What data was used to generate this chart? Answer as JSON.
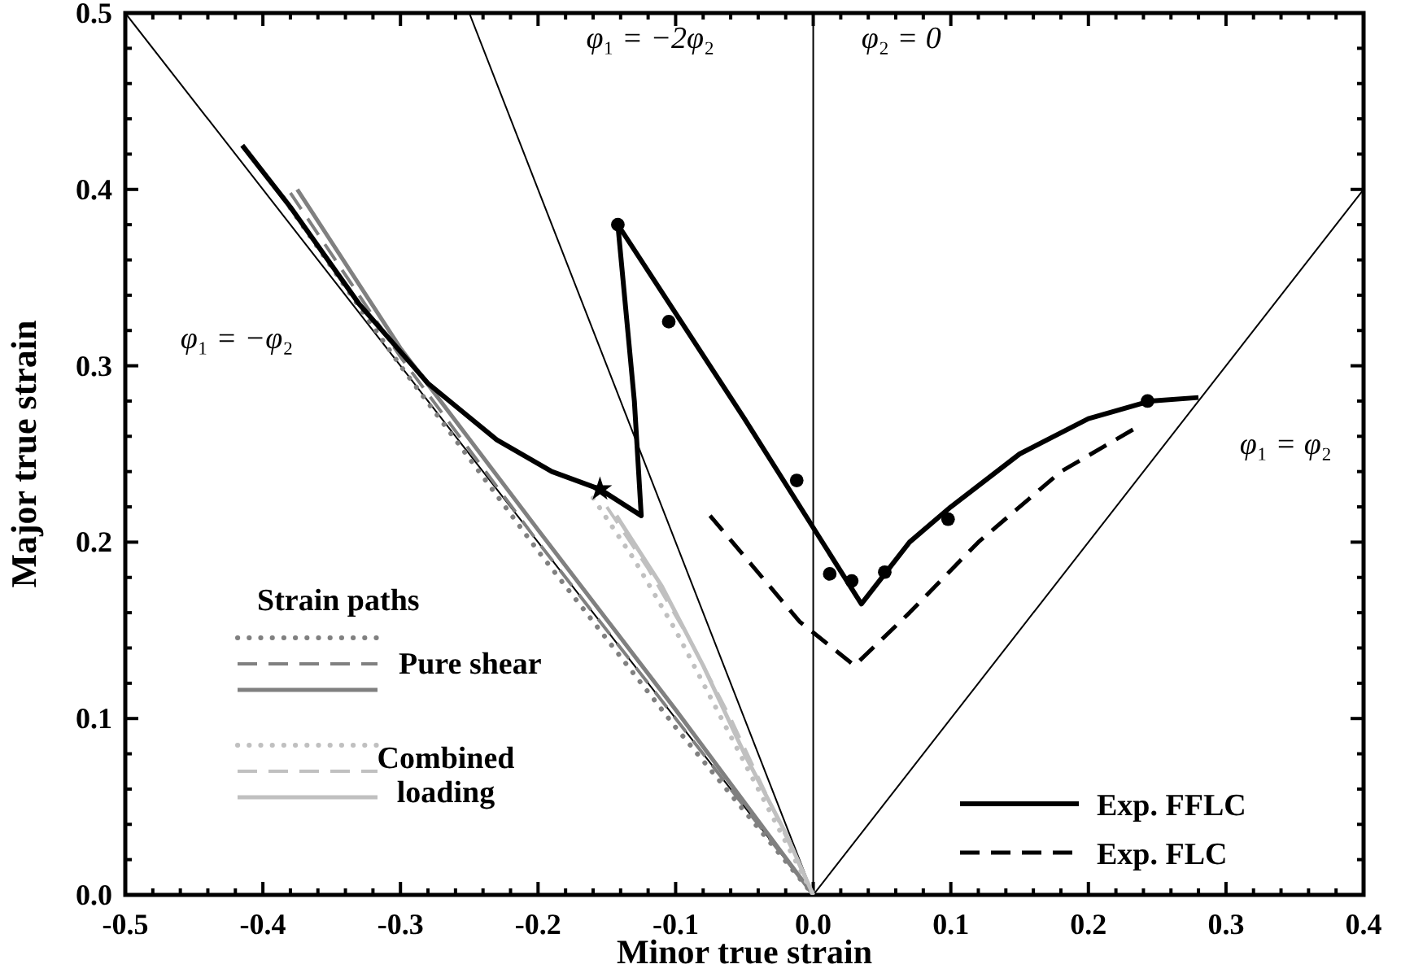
{
  "chart_data": {
    "type": "line",
    "xlabel": "Minor true strain",
    "ylabel": "Major true strain",
    "legend_title": "Strain paths",
    "legend": "bottom",
    "grid": false,
    "xlim": [
      -0.5,
      0.4
    ],
    "ylim": [
      0,
      0.5
    ],
    "xticks": [
      {
        "value": -0.5,
        "label": "-0.5"
      },
      {
        "value": -0.48,
        "label": null
      },
      {
        "value": -0.46,
        "label": null
      },
      {
        "value": -0.44,
        "label": null
      },
      {
        "value": -0.42,
        "label": null
      },
      {
        "value": -0.4,
        "label": "-0.4"
      },
      {
        "value": -0.38,
        "label": null
      },
      {
        "value": -0.36,
        "label": null
      },
      {
        "value": -0.34,
        "label": null
      },
      {
        "value": -0.32,
        "label": null
      },
      {
        "value": -0.3,
        "label": "-0.3"
      },
      {
        "value": -0.28,
        "label": null
      },
      {
        "value": -0.26,
        "label": null
      },
      {
        "value": -0.24,
        "label": null
      },
      {
        "value": -0.22,
        "label": null
      },
      {
        "value": -0.2,
        "label": "-0.2"
      },
      {
        "value": -0.18,
        "label": null
      },
      {
        "value": -0.16,
        "label": null
      },
      {
        "value": -0.14,
        "label": null
      },
      {
        "value": -0.12,
        "label": null
      },
      {
        "value": -0.1,
        "label": "-0.1"
      },
      {
        "value": -0.08,
        "label": null
      },
      {
        "value": -0.06,
        "label": null
      },
      {
        "value": -0.04,
        "label": null
      },
      {
        "value": -0.02,
        "label": null
      },
      {
        "value": 0,
        "label": "0.0"
      },
      {
        "value": 0.02,
        "label": null
      },
      {
        "value": 0.04,
        "label": null
      },
      {
        "value": 0.06,
        "label": null
      },
      {
        "value": 0.08,
        "label": null
      },
      {
        "value": 0.1,
        "label": "0.1"
      },
      {
        "value": 0.12,
        "label": null
      },
      {
        "value": 0.14,
        "label": null
      },
      {
        "value": 0.16,
        "label": null
      },
      {
        "value": 0.18,
        "label": null
      },
      {
        "value": 0.2,
        "label": "0.2"
      },
      {
        "value": 0.22,
        "label": null
      },
      {
        "value": 0.24,
        "label": null
      },
      {
        "value": 0.26,
        "label": null
      },
      {
        "value": 0.28,
        "label": null
      },
      {
        "value": 0.3,
        "label": "0.3"
      },
      {
        "value": 0.32,
        "label": null
      },
      {
        "value": 0.34,
        "label": null
      },
      {
        "value": 0.36,
        "label": null
      },
      {
        "value": 0.38,
        "label": null
      },
      {
        "value": 0.4,
        "label": "0.4"
      }
    ],
    "yticks": [
      {
        "value": 0,
        "label": "0.0"
      },
      {
        "value": 0.02,
        "label": null
      },
      {
        "value": 0.04,
        "label": null
      },
      {
        "value": 0.06,
        "label": null
      },
      {
        "value": 0.08,
        "label": null
      },
      {
        "value": 0.1,
        "label": "0.1"
      },
      {
        "value": 0.12,
        "label": null
      },
      {
        "value": 0.14,
        "label": null
      },
      {
        "value": 0.16,
        "label": null
      },
      {
        "value": 0.18,
        "label": null
      },
      {
        "value": 0.2,
        "label": "0.2"
      },
      {
        "value": 0.22,
        "label": null
      },
      {
        "value": 0.24,
        "label": null
      },
      {
        "value": 0.26,
        "label": null
      },
      {
        "value": 0.28,
        "label": null
      },
      {
        "value": 0.3,
        "label": "0.3"
      },
      {
        "value": 0.32,
        "label": null
      },
      {
        "value": 0.34,
        "label": null
      },
      {
        "value": 0.36,
        "label": null
      },
      {
        "value": 0.38,
        "label": null
      },
      {
        "value": 0.4,
        "label": "0.4"
      },
      {
        "value": 0.42,
        "label": null
      },
      {
        "value": 0.44,
        "label": null
      },
      {
        "value": 0.46,
        "label": null
      },
      {
        "value": 0.48,
        "label": null
      },
      {
        "value": 0.5,
        "label": "0.5"
      }
    ],
    "ref_lines": [
      {
        "axis": "x",
        "value": 0,
        "color": "#000000"
      }
    ],
    "annotations": [
      "φ₁ = −φ₂",
      "φ₁ = −2φ₂",
      "φ₂ = 0",
      "φ₁ = φ₂"
    ],
    "series": [
      {
        "color": "#000000",
        "x": [
          -0.5,
          0
        ],
        "values": [
          0.5,
          0
        ],
        "line_style": "solid"
      },
      {
        "color": "#000000",
        "x": [
          -0.25,
          0
        ],
        "values": [
          0.5,
          0
        ],
        "line_style": "solid"
      },
      {
        "color": "#000000",
        "x": [
          0,
          0.4
        ],
        "values": [
          0,
          0.4
        ],
        "line_style": "solid"
      },
      {
        "color": "#808080",
        "line_style": "dotted",
        "x": [
          -0.385,
          -0.3,
          -0.2,
          -0.1,
          0
        ],
        "values": [
          0.395,
          0.3,
          0.195,
          0.095,
          0
        ]
      },
      {
        "name": "Pure shear",
        "color": "#808080",
        "line_style": "dashed",
        "x": [
          -0.38,
          -0.3,
          -0.2,
          -0.1,
          0
        ],
        "values": [
          0.398,
          0.305,
          0.2,
          0.1,
          0
        ]
      },
      {
        "color": "#808080",
        "line_style": "solid",
        "x": [
          -0.375,
          -0.3,
          -0.2,
          -0.1,
          0
        ],
        "values": [
          0.4,
          0.31,
          0.207,
          0.105,
          0
        ]
      },
      {
        "color": "#c0c0c0",
        "line_style": "dotted",
        "x": [
          -0.16,
          -0.13,
          -0.1,
          -0.07,
          -0.04,
          0
        ],
        "values": [
          0.225,
          0.19,
          0.15,
          0.105,
          0.06,
          0
        ]
      },
      {
        "name": "Combined loading",
        "color": "#c0c0c0",
        "line_style": "dashed",
        "x": [
          -0.15,
          -0.12,
          -0.09,
          -0.06,
          -0.03,
          0
        ],
        "values": [
          0.22,
          0.185,
          0.145,
          0.1,
          0.05,
          0
        ]
      },
      {
        "color": "#c0c0c0",
        "line_style": "solid",
        "x": [
          -0.143,
          -0.11,
          -0.08,
          -0.05,
          -0.02,
          0
        ],
        "values": [
          0.215,
          0.175,
          0.13,
          0.08,
          0.035,
          0
        ]
      },
      {
        "name": "Exp. FFLC",
        "color": "#000000",
        "line_style": "solid",
        "x": [
          -0.415,
          -0.38,
          -0.33,
          -0.28,
          -0.23,
          -0.19,
          -0.155,
          -0.125,
          -0.13,
          -0.142,
          -0.05,
          0.035,
          0.07,
          0.1,
          0.15,
          0.2,
          0.245,
          0.28
        ],
        "values": [
          0.425,
          0.39,
          0.335,
          0.29,
          0.258,
          0.24,
          0.23,
          0.215,
          0.28,
          0.38,
          0.27,
          0.165,
          0.2,
          0.22,
          0.25,
          0.27,
          0.28,
          0.282
        ]
      },
      {
        "name": "Exp. FLC",
        "color": "#000000",
        "line_style": "dashed",
        "x": [
          -0.075,
          -0.01,
          0.03,
          0.07,
          0.12,
          0.18,
          0.235
        ],
        "values": [
          0.215,
          0.155,
          0.13,
          0.16,
          0.2,
          0.24,
          0.265
        ]
      },
      {
        "type": "scatter",
        "color": "#000000",
        "marker": "circle",
        "x": [
          -0.142,
          -0.105,
          -0.012,
          0.012,
          0.028,
          0.052,
          0.098,
          0.243
        ],
        "values": [
          0.38,
          0.325,
          0.235,
          0.182,
          0.178,
          0.183,
          0.213,
          0.28
        ]
      },
      {
        "type": "scatter",
        "color": "#000000",
        "marker": "star",
        "x": [
          -0.155
        ],
        "values": [
          0.23
        ]
      }
    ]
  }
}
